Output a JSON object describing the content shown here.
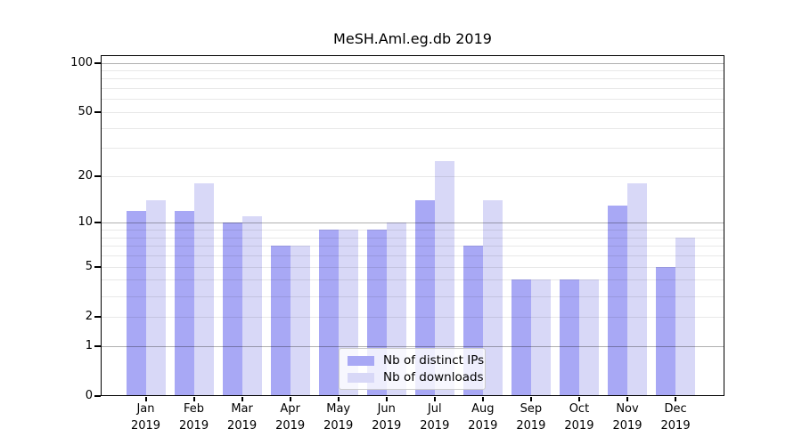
{
  "chart_data": {
    "type": "bar",
    "title": "MeSH.Aml.eg.db 2019",
    "categories": [
      "Jan",
      "Feb",
      "Mar",
      "Apr",
      "May",
      "Jun",
      "Jul",
      "Aug",
      "Sep",
      "Oct",
      "Nov",
      "Dec"
    ],
    "year": "2019",
    "series": [
      {
        "name": "Nb of distinct IPs",
        "color": "#a8a8f5",
        "values": [
          12,
          12,
          10,
          7,
          9,
          9,
          14,
          7,
          4,
          4,
          13,
          5
        ]
      },
      {
        "name": "Nb of downloads",
        "color": "#d8d8f7",
        "values": [
          14,
          18,
          11,
          7,
          9,
          10,
          25,
          14,
          4,
          4,
          18,
          8
        ]
      }
    ],
    "xlabel": "",
    "ylabel": "",
    "y_axis": {
      "scale": "log10(1+v)",
      "ticks": [
        0,
        1,
        2,
        5,
        10,
        20,
        50,
        100
      ],
      "major_gridlines": [
        1,
        10,
        100
      ],
      "minor_gridlines": [
        2,
        3,
        4,
        5,
        6,
        7,
        8,
        9,
        20,
        30,
        40,
        50,
        60,
        70,
        80,
        90
      ],
      "ylim": [
        0,
        112
      ]
    },
    "legend": {
      "position": "inside-bottom-center"
    },
    "colors": {
      "major_grid": "rgba(0,0,0,0.31)",
      "minor_grid": "rgba(0,0,0,0.09)",
      "frame": "#000000",
      "text": "#000000",
      "background": "#ffffff"
    },
    "grid": true
  }
}
